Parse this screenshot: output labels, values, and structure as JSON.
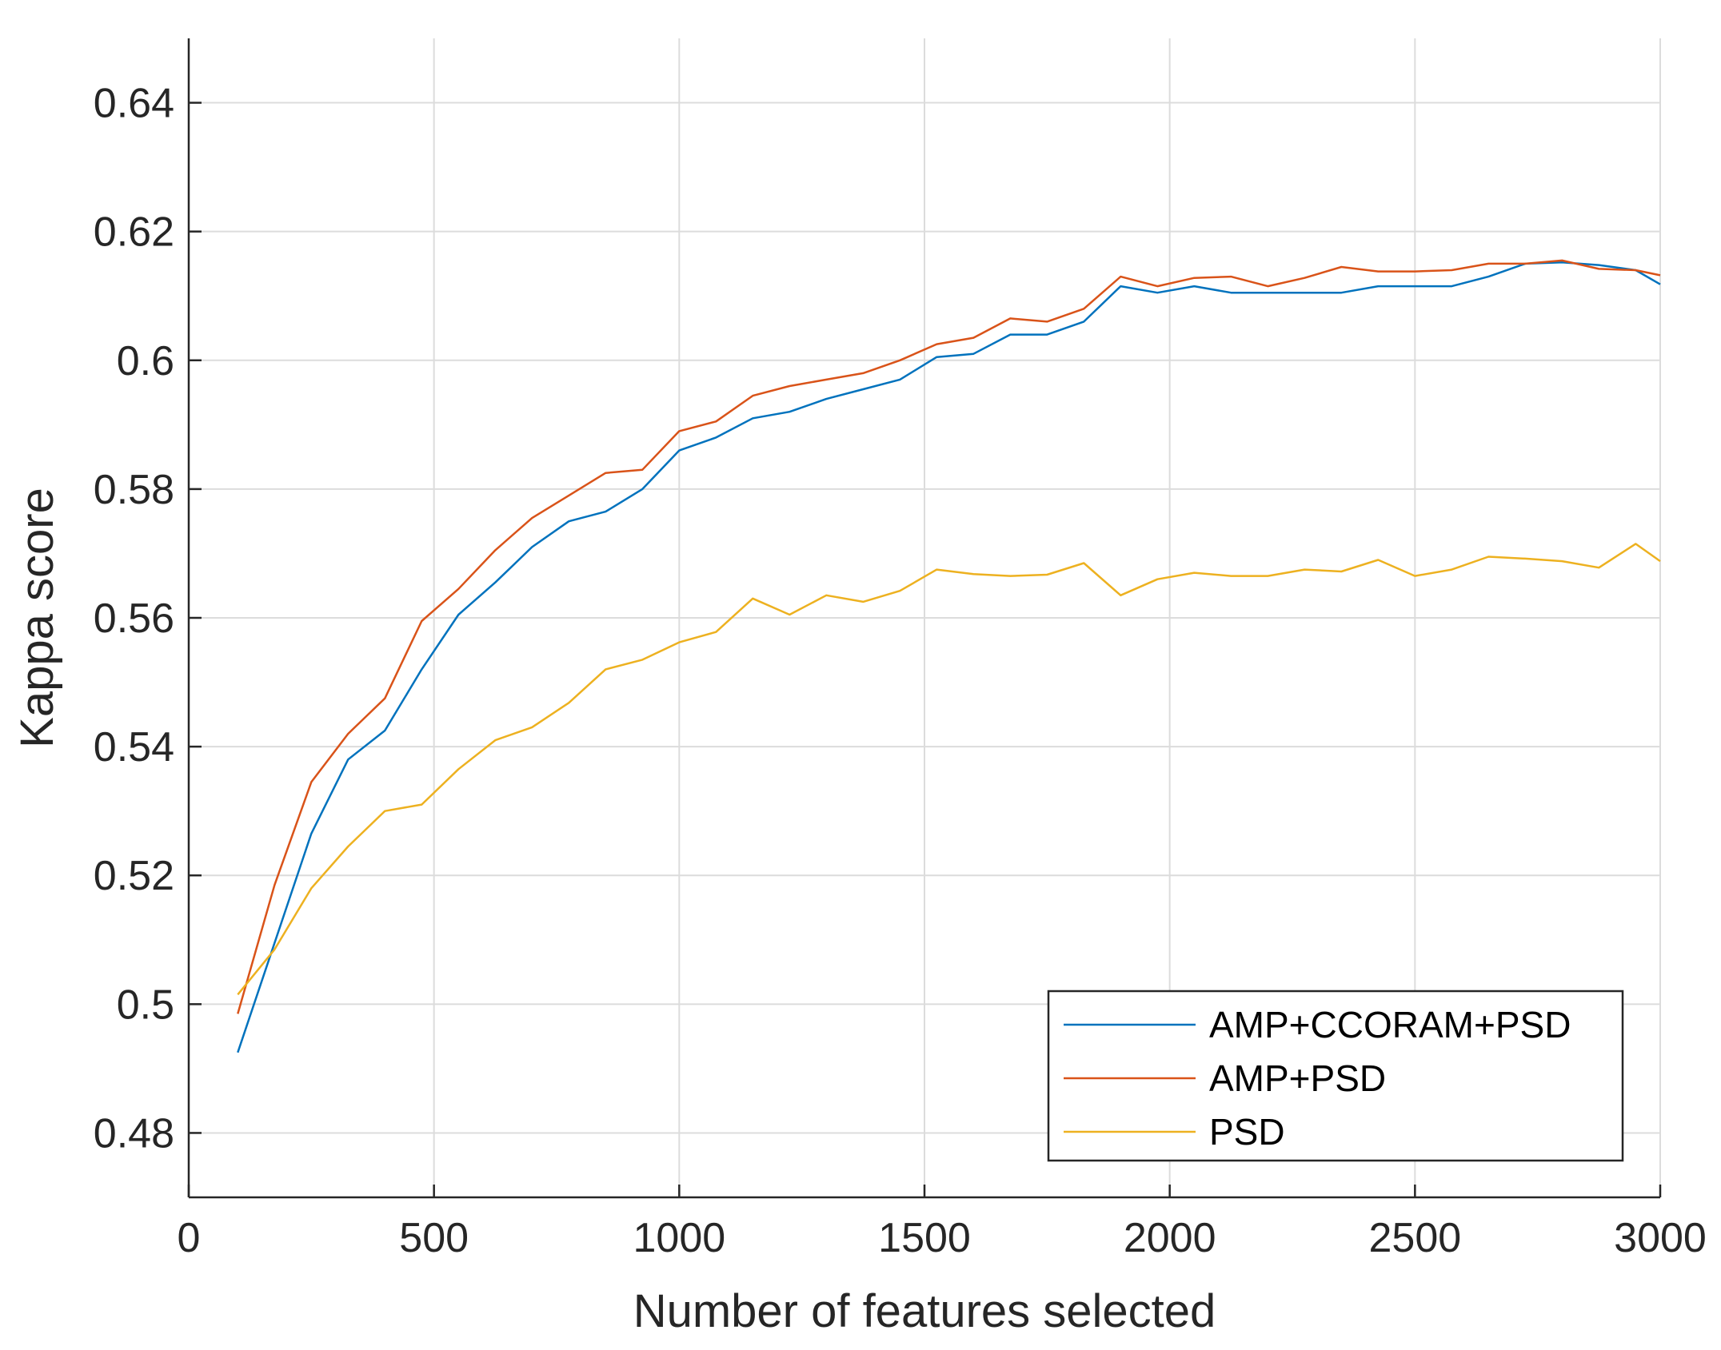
{
  "chart_data": {
    "type": "line",
    "title": "",
    "xlabel": "Number of features selected",
    "ylabel": "Kappa score",
    "xlim": [
      0,
      3000
    ],
    "ylim": [
      0.47,
      0.65
    ],
    "xticks": [
      0,
      500,
      1000,
      1500,
      2000,
      2500,
      3000
    ],
    "xtick_labels": [
      "0",
      "500",
      "1000",
      "1500",
      "2000",
      "2500",
      "3000"
    ],
    "yticks": [
      0.48,
      0.5,
      0.52,
      0.54,
      0.56,
      0.58,
      0.6,
      0.62,
      0.64
    ],
    "ytick_labels": [
      "0.48",
      "0.5",
      "0.52",
      "0.54",
      "0.56",
      "0.58",
      "0.6",
      "0.62",
      "0.64"
    ],
    "grid": true,
    "legend_position": "bottom-right",
    "x": [
      100,
      175,
      250,
      325,
      400,
      475,
      550,
      625,
      700,
      775,
      850,
      925,
      1000,
      1075,
      1150,
      1225,
      1300,
      1375,
      1450,
      1525,
      1600,
      1675,
      1750,
      1825,
      1900,
      1975,
      2050,
      2125,
      2200,
      2275,
      2350,
      2425,
      2500,
      2575,
      2650,
      2725,
      2800,
      2875,
      2950,
      3000
    ],
    "series": [
      {
        "name": "AMP+CCORAM+PSD",
        "color": "#0072BD",
        "values": [
          0.4925,
          0.5095,
          0.5265,
          0.538,
          0.5425,
          0.552,
          0.5605,
          0.5655,
          0.571,
          0.575,
          0.5765,
          0.58,
          0.586,
          0.588,
          0.591,
          0.592,
          0.594,
          0.5955,
          0.597,
          0.6005,
          0.601,
          0.604,
          0.604,
          0.606,
          0.6115,
          0.6105,
          0.6115,
          0.6105,
          0.6105,
          0.6105,
          0.6105,
          0.6115,
          0.6115,
          0.6115,
          0.613,
          0.615,
          0.6152,
          0.6148,
          0.614,
          0.6118
        ]
      },
      {
        "name": "AMP+PSD",
        "color": "#D95319",
        "values": [
          0.4985,
          0.5185,
          0.5345,
          0.542,
          0.5475,
          0.5595,
          0.5645,
          0.5705,
          0.5755,
          0.579,
          0.5825,
          0.583,
          0.589,
          0.5905,
          0.5945,
          0.596,
          0.597,
          0.598,
          0.6,
          0.6025,
          0.6035,
          0.6065,
          0.606,
          0.608,
          0.613,
          0.6115,
          0.6128,
          0.613,
          0.6115,
          0.6128,
          0.6145,
          0.6138,
          0.6138,
          0.614,
          0.615,
          0.615,
          0.6155,
          0.6142,
          0.614,
          0.6132
        ]
      },
      {
        "name": "PSD",
        "color": "#EDB120",
        "values": [
          0.5015,
          0.5085,
          0.518,
          0.5245,
          0.53,
          0.531,
          0.5365,
          0.541,
          0.543,
          0.5468,
          0.552,
          0.5535,
          0.5562,
          0.5578,
          0.563,
          0.5605,
          0.5635,
          0.5625,
          0.5642,
          0.5675,
          0.5668,
          0.5665,
          0.5667,
          0.5685,
          0.5635,
          0.566,
          0.567,
          0.5665,
          0.5665,
          0.5675,
          0.5672,
          0.569,
          0.5665,
          0.5675,
          0.5695,
          0.5692,
          0.5688,
          0.5678,
          0.5715,
          0.5688
        ]
      }
    ]
  }
}
